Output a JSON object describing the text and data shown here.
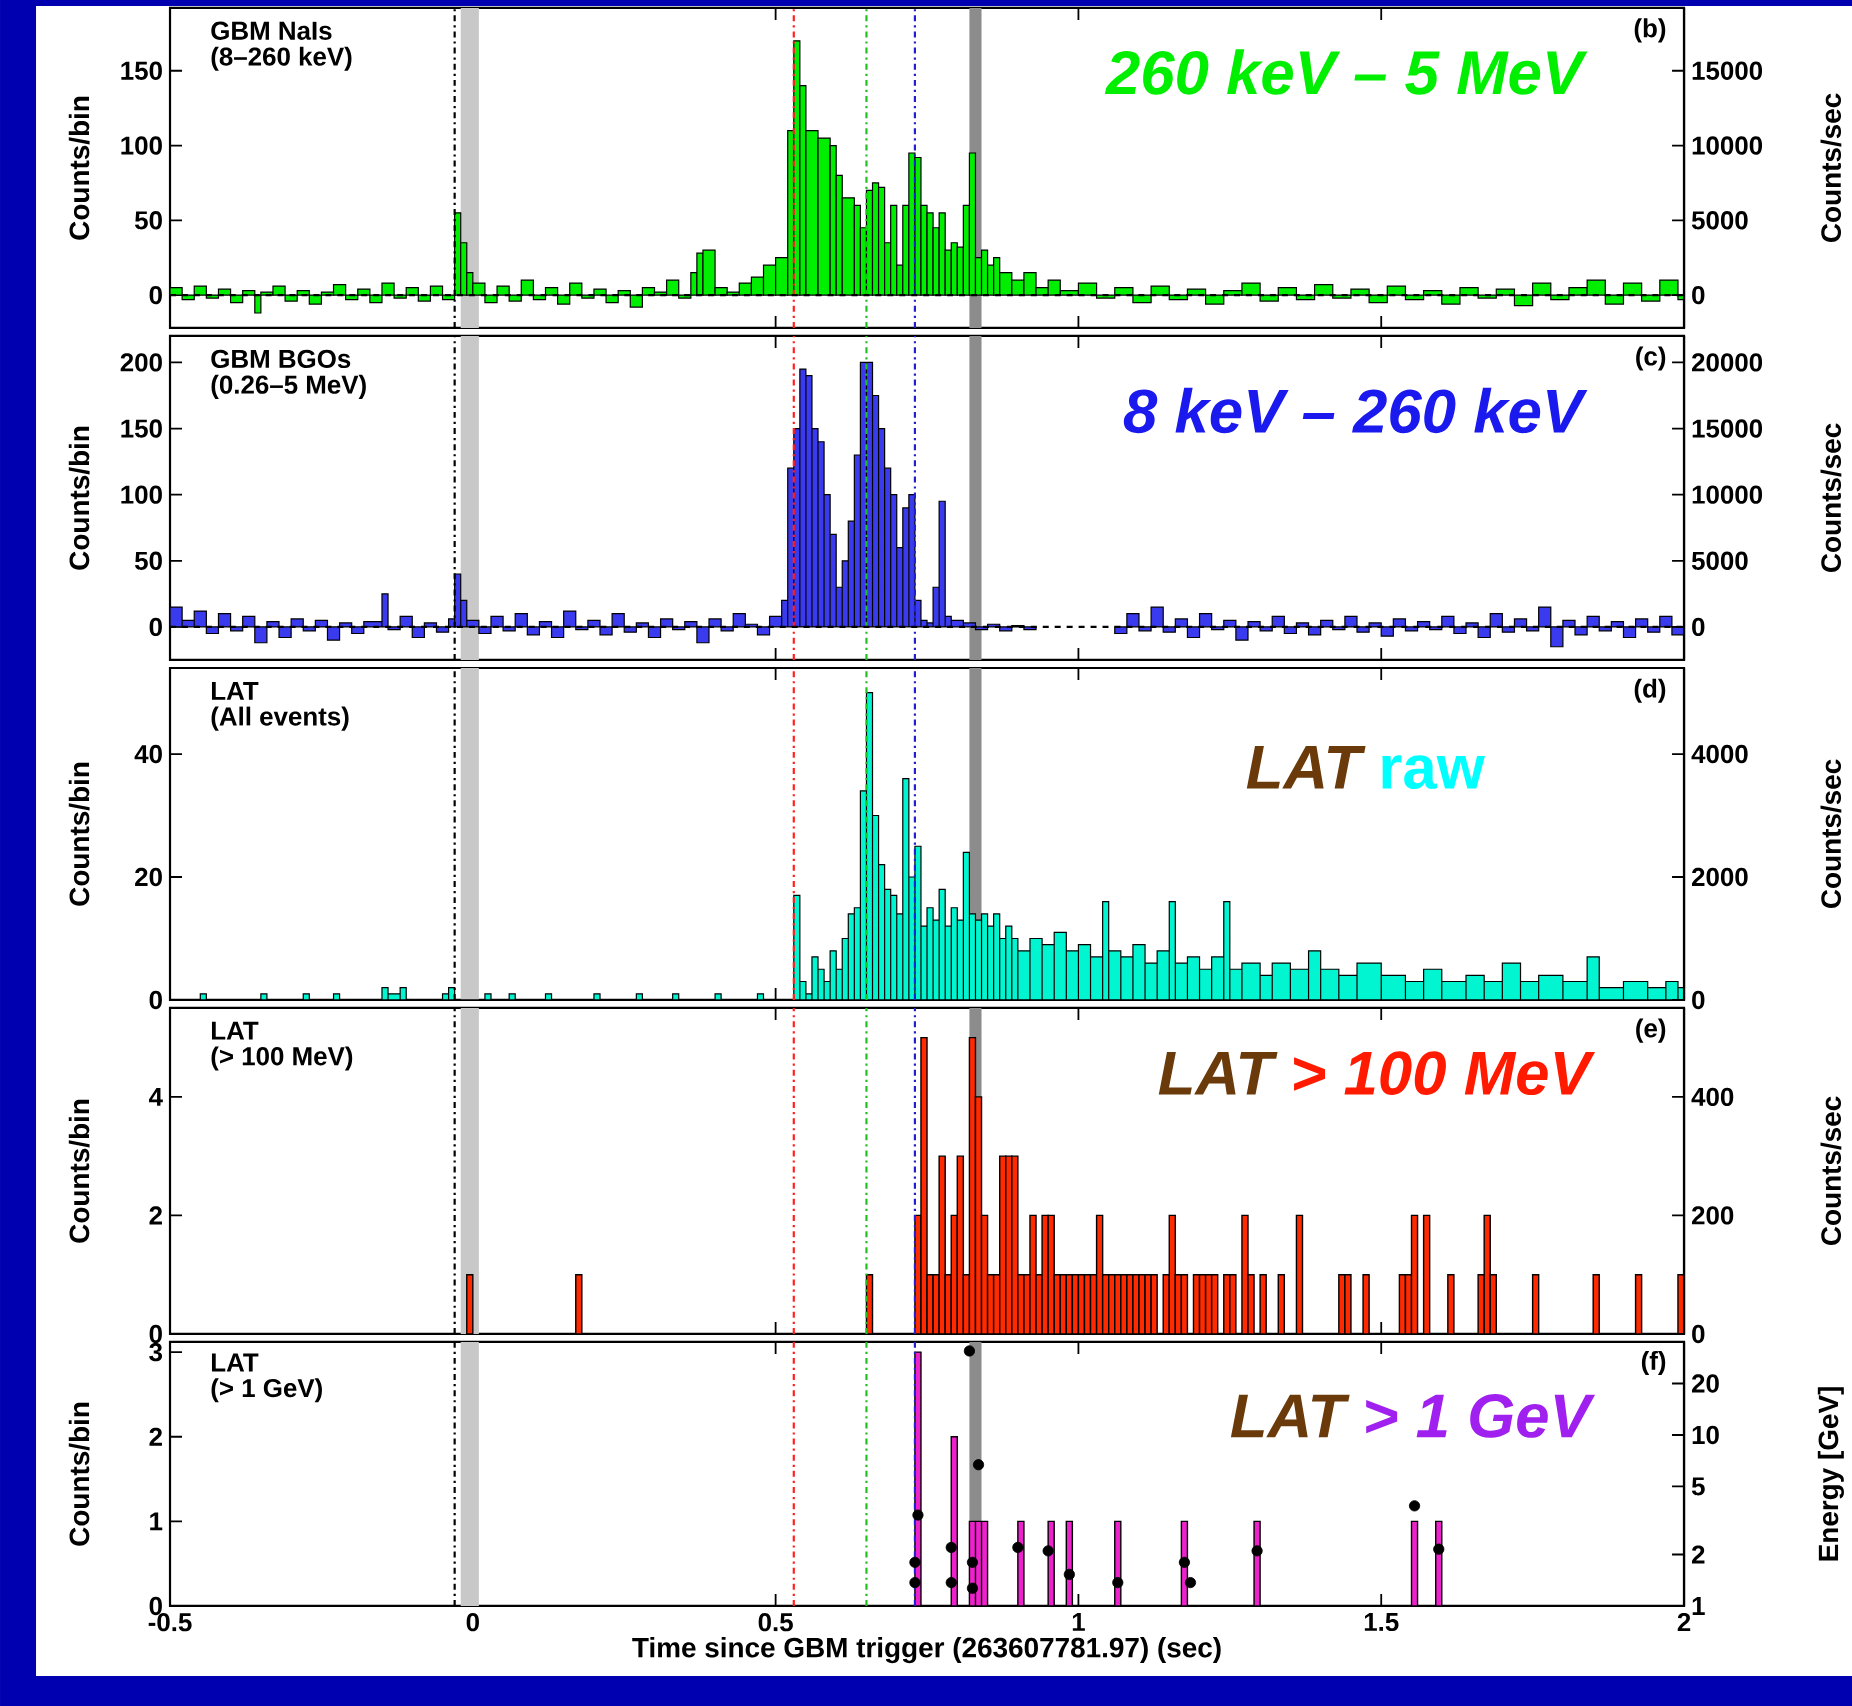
{
  "chart_data": [
    {
      "type": "histogram",
      "ylabel": "Counts/bin",
      "y2label": "Counts/sec",
      "color": "#00ee00",
      "annotations": [
        "GBM NaIs",
        "(8–260 keV)",
        "(b)",
        "260 keV – 5 MeV"
      ],
      "bins": [
        -0.5,
        -0.48,
        -0.46,
        -0.44,
        -0.42,
        -0.4,
        -0.38,
        -0.36,
        -0.35,
        -0.33,
        -0.31,
        -0.29,
        -0.27,
        -0.25,
        -0.23,
        -0.21,
        -0.19,
        -0.17,
        -0.15,
        -0.13,
        -0.11,
        -0.09,
        -0.07,
        -0.05,
        -0.03,
        -0.02,
        -0.01,
        0.0,
        0.02,
        0.04,
        0.06,
        0.08,
        0.1,
        0.12,
        0.14,
        0.16,
        0.18,
        0.2,
        0.22,
        0.24,
        0.26,
        0.28,
        0.3,
        0.32,
        0.34,
        0.36,
        0.37,
        0.38,
        0.4,
        0.42,
        0.44,
        0.46,
        0.48,
        0.5,
        0.52,
        0.53,
        0.54,
        0.55,
        0.57,
        0.59,
        0.6,
        0.61,
        0.63,
        0.64,
        0.65,
        0.66,
        0.67,
        0.68,
        0.69,
        0.7,
        0.71,
        0.72,
        0.73,
        0.74,
        0.75,
        0.76,
        0.77,
        0.78,
        0.79,
        0.8,
        0.81,
        0.82,
        0.83,
        0.84,
        0.85,
        0.86,
        0.87,
        0.89,
        0.91,
        0.93,
        0.95,
        0.97,
        1.0,
        1.03,
        1.06,
        1.09,
        1.12,
        1.15,
        1.18,
        1.21,
        1.24,
        1.27,
        1.3,
        1.33,
        1.36,
        1.39,
        1.42,
        1.45,
        1.48,
        1.51,
        1.54,
        1.57,
        1.6,
        1.63,
        1.66,
        1.69,
        1.72,
        1.75,
        1.78,
        1.81,
        1.84,
        1.87,
        1.9,
        1.93,
        1.96,
        1.99,
        2
      ],
      "values": [
        5,
        -3,
        6,
        -2,
        4,
        -5,
        3,
        -12,
        2,
        6,
        -4,
        3,
        -6,
        2,
        7,
        -3,
        4,
        -5,
        8,
        -2,
        5,
        -4,
        6,
        -3,
        55,
        35,
        15,
        8,
        -5,
        6,
        -4,
        10,
        -3,
        5,
        -6,
        8,
        -2,
        4,
        -5,
        3,
        -8,
        5,
        2,
        10,
        -2,
        15,
        28,
        30,
        5,
        2,
        8,
        12,
        20,
        25,
        110,
        170,
        140,
        110,
        105,
        100,
        80,
        65,
        60,
        45,
        70,
        75,
        72,
        35,
        60,
        20,
        60,
        95,
        92,
        60,
        55,
        45,
        55,
        30,
        35,
        32,
        60,
        95,
        25,
        30,
        20,
        25,
        15,
        10,
        15,
        5,
        10,
        3,
        8,
        -2,
        5,
        -5,
        6,
        -3,
        4,
        -6,
        3,
        8,
        -4,
        5,
        -3,
        7,
        -2,
        4,
        -5,
        6,
        -3,
        3,
        -6,
        5,
        -2,
        4,
        -7,
        8,
        -3,
        5,
        10,
        -6,
        8,
        -4,
        10,
        -3
      ],
      "xlim": [
        -0.5,
        2
      ],
      "xticks": [
        -0.5,
        0,
        0.5,
        1,
        1.5,
        2
      ],
      "ylim": [
        -22,
        192
      ],
      "yticks": [
        0,
        50,
        100,
        150
      ],
      "y2lim": [
        -2200,
        19200
      ],
      "y2ticks": [
        0,
        5000,
        10000,
        15000
      ],
      "tick_labels": "y",
      "ref_lines": [
        {
          "axis": "x",
          "value": -0.03,
          "color": "#000000",
          "line_style": "dashdot"
        },
        {
          "axis": "x",
          "value": 0.53,
          "color": "#ff2020",
          "line_style": "dashdot"
        },
        {
          "axis": "x",
          "value": 0.65,
          "color": "#20c020",
          "line_style": "dashdot"
        },
        {
          "axis": "x",
          "value": 0.73,
          "color": "#2020d0",
          "line_style": "dashdot"
        },
        {
          "axis": "y",
          "value": 0,
          "color": "#000000",
          "line_style": "dashed"
        }
      ],
      "bands": [
        {
          "axis": "x",
          "from": -0.02,
          "to": 0.01,
          "color": "#c8c8c8"
        },
        {
          "axis": "x",
          "from": 0.82,
          "to": 0.84,
          "color": "#8c8c8c"
        }
      ]
    },
    {
      "type": "histogram",
      "ylabel": "Counts/bin",
      "y2label": "Counts/sec",
      "color": "#3a3aee",
      "annotations": [
        "GBM BGOs",
        "(0.26–5 MeV)",
        "(c)",
        "8 keV – 260 keV"
      ],
      "bins": [
        -0.5,
        -0.48,
        -0.46,
        -0.44,
        -0.42,
        -0.4,
        -0.38,
        -0.36,
        -0.34,
        -0.32,
        -0.3,
        -0.28,
        -0.26,
        -0.24,
        -0.22,
        -0.2,
        -0.18,
        -0.15,
        -0.14,
        -0.12,
        -0.1,
        -0.08,
        -0.06,
        -0.04,
        -0.03,
        -0.02,
        -0.01,
        0.01,
        0.03,
        0.05,
        0.07,
        0.09,
        0.11,
        0.13,
        0.15,
        0.17,
        0.19,
        0.21,
        0.23,
        0.25,
        0.27,
        0.29,
        0.31,
        0.33,
        0.35,
        0.37,
        0.39,
        0.41,
        0.43,
        0.45,
        0.47,
        0.49,
        0.51,
        0.52,
        0.53,
        0.54,
        0.55,
        0.56,
        0.57,
        0.58,
        0.59,
        0.6,
        0.61,
        0.62,
        0.63,
        0.64,
        0.65,
        0.66,
        0.67,
        0.68,
        0.69,
        0.7,
        0.71,
        0.72,
        0.73,
        0.74,
        0.75,
        0.76,
        0.77,
        0.78,
        0.79,
        0.81,
        0.83,
        0.85,
        0.87,
        0.89,
        0.91,
        0.93,
        1.06,
        1.08,
        1.1,
        1.12,
        1.14,
        1.16,
        1.18,
        1.2,
        1.22,
        1.24,
        1.26,
        1.28,
        1.3,
        1.32,
        1.34,
        1.36,
        1.38,
        1.4,
        1.42,
        1.44,
        1.46,
        1.48,
        1.5,
        1.52,
        1.54,
        1.56,
        1.58,
        1.6,
        1.62,
        1.64,
        1.66,
        1.68,
        1.7,
        1.72,
        1.74,
        1.76,
        1.78,
        1.8,
        1.82,
        1.84,
        1.86,
        1.88,
        1.9,
        1.92,
        1.94,
        1.96,
        1.98,
        2
      ],
      "values": [
        15,
        5,
        12,
        -5,
        10,
        -3,
        8,
        -12,
        4,
        -8,
        6,
        -3,
        5,
        -10,
        3,
        -5,
        4,
        25,
        -2,
        8,
        -8,
        3,
        -4,
        6,
        40,
        20,
        5,
        -5,
        8,
        -3,
        10,
        -6,
        4,
        -8,
        12,
        -2,
        5,
        -6,
        10,
        -4,
        3,
        -8,
        6,
        -2,
        4,
        -12,
        6,
        -3,
        10,
        2,
        -6,
        8,
        20,
        120,
        150,
        195,
        190,
        150,
        140,
        100,
        70,
        30,
        50,
        80,
        130,
        200,
        200,
        175,
        150,
        120,
        100,
        60,
        90,
        100,
        20,
        5,
        3,
        30,
        95,
        8,
        5,
        3,
        -2,
        2,
        -3,
        1,
        -2,
        null,
        -5,
        10,
        -3,
        15,
        -4,
        6,
        -8,
        10,
        -2,
        5,
        -10,
        4,
        -3,
        8,
        -5,
        3,
        -6,
        5,
        -2,
        8,
        -4,
        3,
        -7,
        6,
        -3,
        4,
        -2,
        8,
        -5,
        3,
        -8,
        10,
        -4,
        6,
        -3,
        15,
        -15,
        5,
        -6,
        8,
        -3,
        4,
        -8,
        6,
        -4,
        8,
        -6
      ],
      "xlim": [
        -0.5,
        2
      ],
      "xticks": [
        -0.5,
        0,
        0.5,
        1,
        1.5,
        2
      ],
      "ylim": [
        -25,
        220
      ],
      "yticks": [
        0,
        50,
        100,
        150,
        200
      ],
      "y2lim": [
        -2500,
        22000
      ],
      "y2ticks": [
        0,
        5000,
        10000,
        15000,
        20000
      ],
      "tick_labels": "y",
      "ref_lines": [
        {
          "axis": "x",
          "value": -0.03,
          "color": "#000000",
          "line_style": "dashdot"
        },
        {
          "axis": "x",
          "value": 0.53,
          "color": "#ff2020",
          "line_style": "dashdot"
        },
        {
          "axis": "x",
          "value": 0.65,
          "color": "#20c020",
          "line_style": "dashdot"
        },
        {
          "axis": "x",
          "value": 0.73,
          "color": "#2020d0",
          "line_style": "dashdot"
        },
        {
          "axis": "y",
          "value": 0,
          "color": "#000000",
          "line_style": "dashed"
        }
      ],
      "bands": [
        {
          "axis": "x",
          "from": -0.02,
          "to": 0.01,
          "color": "#c8c8c8"
        },
        {
          "axis": "x",
          "from": 0.82,
          "to": 0.84,
          "color": "#8c8c8c"
        }
      ]
    },
    {
      "type": "histogram",
      "ylabel": "Counts/bin",
      "y2label": "Counts/sec",
      "color": "#00f5d0",
      "annotations": [
        "LAT",
        "(All events)",
        "(d)",
        "LAT",
        "raw"
      ],
      "bins": [
        -0.45,
        -0.44,
        -0.35,
        -0.34,
        -0.28,
        -0.27,
        -0.23,
        -0.22,
        -0.15,
        -0.14,
        -0.12,
        -0.11,
        -0.05,
        -0.04,
        -0.03,
        0.02,
        0.03,
        0.06,
        0.07,
        0.12,
        0.13,
        0.2,
        0.21,
        0.27,
        0.28,
        0.33,
        0.34,
        0.4,
        0.41,
        0.47,
        0.48,
        0.53,
        0.54,
        0.55,
        0.56,
        0.57,
        0.58,
        0.59,
        0.6,
        0.61,
        0.62,
        0.63,
        0.64,
        0.65,
        0.66,
        0.67,
        0.68,
        0.69,
        0.7,
        0.71,
        0.72,
        0.73,
        0.74,
        0.75,
        0.76,
        0.77,
        0.78,
        0.79,
        0.8,
        0.81,
        0.82,
        0.83,
        0.84,
        0.85,
        0.86,
        0.87,
        0.88,
        0.89,
        0.9,
        0.92,
        0.94,
        0.96,
        0.98,
        1.0,
        1.02,
        1.04,
        1.05,
        1.07,
        1.09,
        1.11,
        1.13,
        1.15,
        1.16,
        1.18,
        1.2,
        1.22,
        1.24,
        1.25,
        1.27,
        1.3,
        1.32,
        1.35,
        1.38,
        1.4,
        1.43,
        1.46,
        1.5,
        1.54,
        1.57,
        1.6,
        1.64,
        1.67,
        1.7,
        1.73,
        1.76,
        1.8,
        1.84,
        1.86,
        1.9,
        1.94,
        1.97,
        1.99,
        2
      ],
      "values": [
        1,
        0,
        1,
        0,
        1,
        0,
        1,
        0,
        2,
        1,
        2,
        0,
        1,
        2,
        0,
        1,
        0,
        1,
        0,
        1,
        0,
        1,
        0,
        1,
        0,
        1,
        0,
        1,
        0,
        1,
        0,
        17,
        3,
        1,
        7,
        5,
        3,
        8,
        5,
        10,
        14,
        15,
        34,
        50,
        30,
        22,
        18,
        17,
        14,
        36,
        20,
        25,
        12,
        15,
        13,
        18,
        12,
        15,
        13,
        24,
        14,
        13,
        14,
        12,
        14,
        10,
        12,
        10,
        8,
        10,
        9,
        11,
        8,
        9,
        7,
        16,
        8,
        7,
        9,
        6,
        8,
        16,
        6,
        7,
        5,
        7,
        16,
        5,
        6,
        4,
        6,
        5,
        8,
        5,
        4,
        6,
        4,
        3,
        5,
        3,
        4,
        3,
        6,
        3,
        4,
        3,
        7,
        2,
        3,
        2,
        3,
        2
      ],
      "xlim": [
        -0.5,
        2
      ],
      "xticks": [
        -0.5,
        0,
        0.5,
        1,
        1.5,
        2
      ],
      "ylim": [
        0,
        54
      ],
      "yticks": [
        0,
        20,
        40
      ],
      "y2lim": [
        0,
        5400
      ],
      "y2ticks": [
        0,
        2000,
        4000
      ],
      "tick_labels": "y",
      "ref_lines": [
        {
          "axis": "x",
          "value": -0.03,
          "color": "#000000",
          "line_style": "dashdot"
        },
        {
          "axis": "x",
          "value": 0.53,
          "color": "#ff2020",
          "line_style": "dashdot"
        },
        {
          "axis": "x",
          "value": 0.65,
          "color": "#20c020",
          "line_style": "dashdot"
        },
        {
          "axis": "x",
          "value": 0.73,
          "color": "#2020d0",
          "line_style": "dashdot"
        }
      ],
      "bands": [
        {
          "axis": "x",
          "from": -0.02,
          "to": 0.01,
          "color": "#c8c8c8"
        },
        {
          "axis": "x",
          "from": 0.82,
          "to": 0.84,
          "color": "#8c8c8c"
        }
      ]
    },
    {
      "type": "bar",
      "ylabel": "Counts/bin",
      "y2label": "Counts/sec",
      "color": "#ff2a00",
      "annotations": [
        "LAT",
        "(> 100 MeV)",
        "(e)",
        "LAT",
        "> 100 MeV"
      ],
      "x": [
        -0.01,
        0.17,
        0.65,
        0.73,
        0.74,
        0.75,
        0.76,
        0.77,
        0.78,
        0.79,
        0.8,
        0.81,
        0.82,
        0.83,
        0.84,
        0.85,
        0.86,
        0.87,
        0.88,
        0.89,
        0.9,
        0.91,
        0.92,
        0.93,
        0.94,
        0.95,
        0.96,
        0.97,
        0.98,
        0.99,
        1.0,
        1.01,
        1.02,
        1.03,
        1.04,
        1.05,
        1.06,
        1.07,
        1.08,
        1.09,
        1.1,
        1.11,
        1.12,
        1.14,
        1.15,
        1.16,
        1.17,
        1.19,
        1.2,
        1.21,
        1.22,
        1.24,
        1.25,
        1.27,
        1.28,
        1.3,
        1.33,
        1.36,
        1.43,
        1.44,
        1.47,
        1.53,
        1.54,
        1.55,
        1.57,
        1.61,
        1.66,
        1.67,
        1.68,
        1.75,
        1.85,
        1.92,
        1.99
      ],
      "values": [
        1,
        1,
        1,
        2,
        5,
        1,
        1,
        3,
        1,
        2,
        3,
        1,
        5,
        4,
        2,
        1,
        1,
        3,
        3,
        3,
        1,
        1,
        2,
        1,
        2,
        2,
        1,
        1,
        1,
        1,
        1,
        1,
        1,
        2,
        1,
        1,
        1,
        1,
        1,
        1,
        1,
        1,
        1,
        1,
        2,
        1,
        1,
        1,
        1,
        1,
        1,
        1,
        1,
        2,
        1,
        1,
        1,
        2,
        1,
        1,
        1,
        1,
        1,
        2,
        2,
        1,
        1,
        2,
        1,
        1,
        1,
        1,
        1
      ],
      "xlim": [
        -0.5,
        2
      ],
      "xticks": [
        -0.5,
        0,
        0.5,
        1,
        1.5,
        2
      ],
      "ylim": [
        0,
        5.5
      ],
      "yticks": [
        0,
        2,
        4
      ],
      "y2lim": [
        0,
        550
      ],
      "y2ticks": [
        0,
        200,
        400
      ],
      "tick_labels": "y",
      "ref_lines": [
        {
          "axis": "x",
          "value": -0.03,
          "color": "#000000",
          "line_style": "dashdot"
        },
        {
          "axis": "x",
          "value": 0.53,
          "color": "#ff2020",
          "line_style": "dashdot"
        },
        {
          "axis": "x",
          "value": 0.65,
          "color": "#20c020",
          "line_style": "dashdot"
        },
        {
          "axis": "x",
          "value": 0.73,
          "color": "#2020d0",
          "line_style": "dashdot"
        }
      ],
      "bands": [
        {
          "axis": "x",
          "from": -0.02,
          "to": 0.01,
          "color": "#c8c8c8"
        },
        {
          "axis": "x",
          "from": 0.82,
          "to": 0.84,
          "color": "#8c8c8c"
        }
      ]
    },
    {
      "type": "bar",
      "xlabel": "Time since GBM trigger (263607781.97) (sec)",
      "ylabel": "Counts/bin",
      "y2label": "Energy [GeV]",
      "annotations": [
        "LAT",
        "(> 1 GeV)",
        "(f)",
        "LAT",
        "> 1 GeV"
      ],
      "series": [
        {
          "type": "bar",
          "color": "#ee22cc",
          "x": [
            0.73,
            0.79,
            0.82,
            0.83,
            0.84,
            0.9,
            0.95,
            0.98,
            1.06,
            1.17,
            1.29,
            1.55,
            1.59
          ],
          "values": [
            3,
            2,
            1,
            1,
            1,
            1,
            1,
            1,
            1,
            1,
            1,
            1,
            1
          ]
        },
        {
          "type": "scatter",
          "axis": "y2",
          "color": "#000000",
          "x": [
            0.73,
            0.73,
            0.735,
            0.79,
            0.79,
            0.82,
            0.825,
            0.825,
            0.835,
            0.9,
            0.95,
            0.985,
            1.065,
            1.175,
            1.185,
            1.295,
            1.555,
            1.595
          ],
          "values": [
            1.37,
            1.8,
            3.4,
            1.37,
            2.2,
            31,
            1.8,
            1.27,
            6.7,
            2.2,
            2.1,
            1.53,
            1.37,
            1.8,
            1.37,
            2.1,
            3.85,
            2.15
          ]
        }
      ],
      "marker": "circle",
      "log": "y2",
      "xlim": [
        -0.5,
        2
      ],
      "xticks": [
        -0.5,
        0,
        0.5,
        1,
        1.5,
        2
      ],
      "ylim": [
        0,
        3.12
      ],
      "yticks": [
        0,
        1,
        2,
        3
      ],
      "y2lim": [
        1,
        35
      ],
      "y2ticks": [
        1,
        2,
        5,
        10,
        20
      ],
      "ref_lines": [
        {
          "axis": "x",
          "value": -0.03,
          "color": "#000000",
          "line_style": "dashdot"
        },
        {
          "axis": "x",
          "value": 0.53,
          "color": "#ff2020",
          "line_style": "dashdot"
        },
        {
          "axis": "x",
          "value": 0.65,
          "color": "#20c020",
          "line_style": "dashdot"
        },
        {
          "axis": "x",
          "value": 0.73,
          "color": "#2020d0",
          "line_style": "dashdot"
        }
      ],
      "bands": [
        {
          "axis": "x",
          "from": -0.02,
          "to": 0.01,
          "color": "#c8c8c8"
        },
        {
          "axis": "x",
          "from": 0.82,
          "to": 0.84,
          "color": "#8c8c8c"
        }
      ]
    }
  ]
}
